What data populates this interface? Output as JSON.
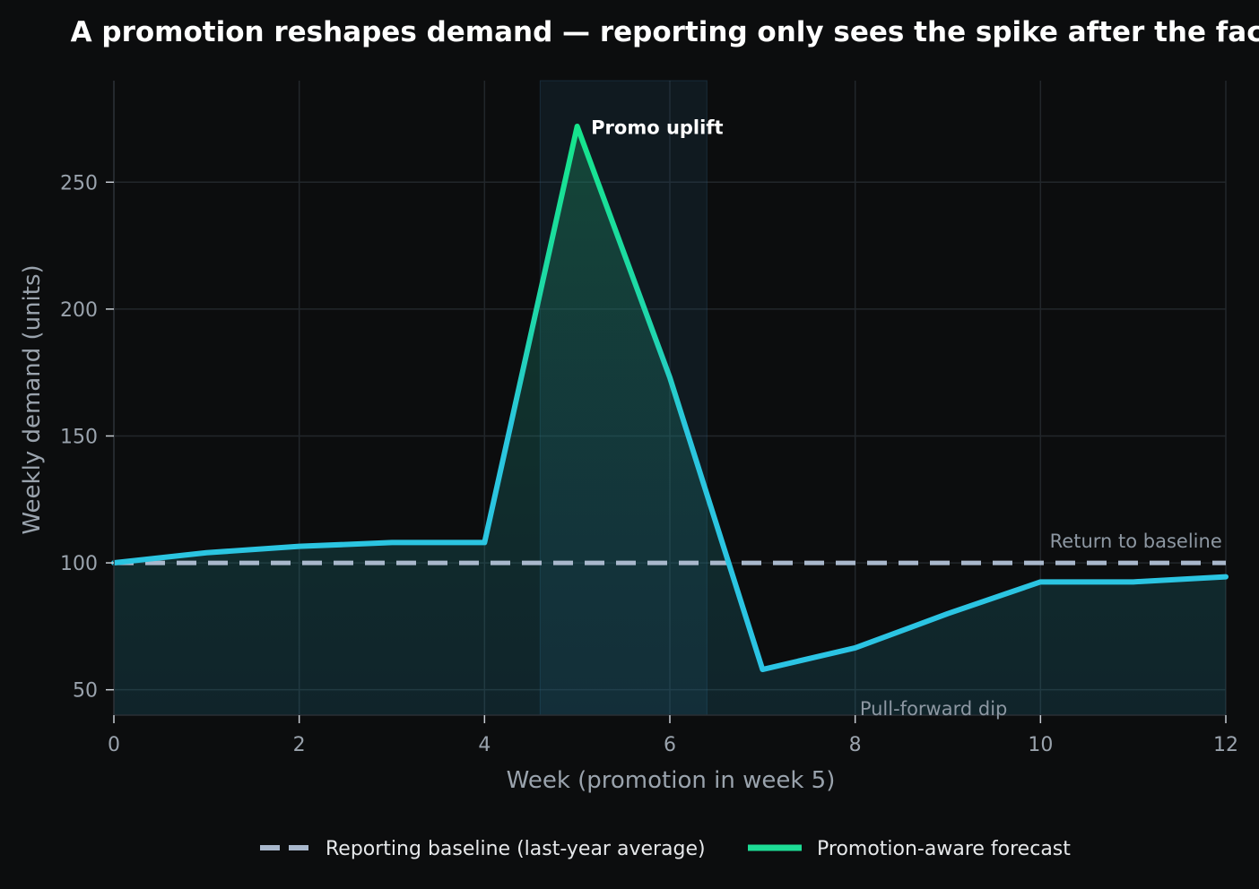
{
  "chart_data": {
    "type": "line",
    "title": "A promotion reshapes demand — reporting only sees the spike after the fact",
    "xlabel": "Week (promotion in week 5)",
    "ylabel": "Weekly demand (units)",
    "xlim": [
      0,
      12
    ],
    "ylim": [
      40,
      290
    ],
    "xticks": [
      "0",
      "2",
      "4",
      "6",
      "8",
      "10",
      "12"
    ],
    "yticks": [
      "50",
      "100",
      "150",
      "200",
      "250"
    ],
    "grid": true,
    "legend_position": "bottom-center",
    "promo_window": [
      4.6,
      6.4
    ],
    "series": [
      {
        "name": "Reporting baseline (last-year average)",
        "style": "dashed",
        "color": "#a9b8cc",
        "x": [
          0,
          12
        ],
        "y": [
          100,
          100
        ]
      },
      {
        "name": "Promotion-aware forecast",
        "style": "solid",
        "color": "#1ddc95",
        "color_end": "#2bc4e4",
        "x": [
          0,
          1,
          2,
          3,
          4,
          5,
          6,
          7,
          8,
          9,
          10,
          11,
          12
        ],
        "y": [
          100,
          104,
          106.5,
          108,
          108,
          272,
          173,
          58,
          66.5,
          80,
          92.5,
          92.5,
          94.5
        ]
      }
    ],
    "annotations": [
      {
        "text": "Promo uplift",
        "x": 5.15,
        "y": 269,
        "color": "#ffffff",
        "weight": "bold"
      },
      {
        "text": "Return to baseline",
        "x": 10.1,
        "y": 106,
        "color": "#8d97a2",
        "weight": "normal"
      },
      {
        "text": "Pull-forward dip",
        "x": 8.05,
        "y": 40,
        "color": "#8d97a2",
        "weight": "normal"
      }
    ]
  }
}
